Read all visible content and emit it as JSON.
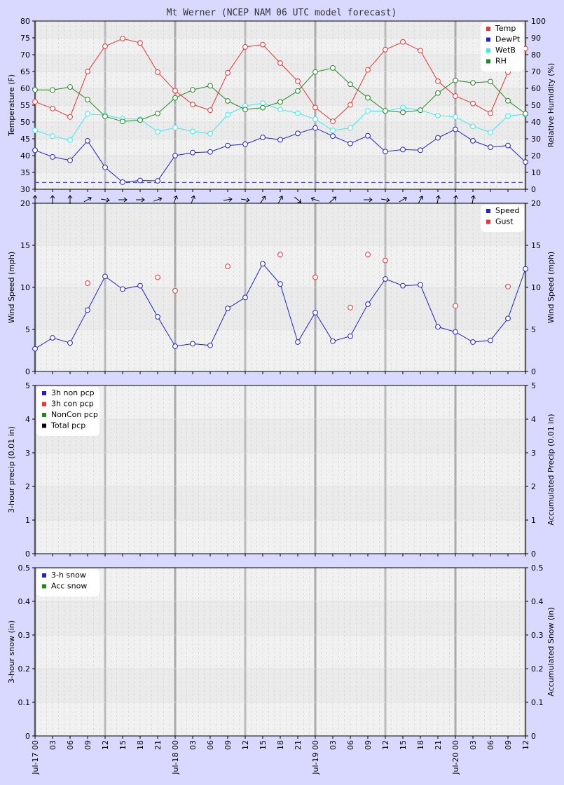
{
  "title": "Mt Werner (NCEP NAM 06 UTC model forecast)",
  "x_labels": [
    "Jul-17 00",
    "03",
    "06",
    "09",
    "12",
    "15",
    "18",
    "21",
    "Jul-18 00",
    "03",
    "06",
    "09",
    "12",
    "15",
    "18",
    "21",
    "Jul-19 00",
    "03",
    "06",
    "09",
    "12",
    "15",
    "18",
    "21",
    "Jul-20 00",
    "03",
    "06",
    "09",
    "12"
  ],
  "colors": {
    "temp": "#ee3333",
    "dewpt": "#2222cc",
    "wetb": "#33eeee",
    "rh": "#228822",
    "speed": "#2222cc",
    "gust": "#ee3333",
    "total": "#000000"
  },
  "chart_data": [
    {
      "type": "line",
      "ylabel": "Temperature (F)",
      "y2label": "Relative Humidity (%)",
      "ylim": [
        30,
        80
      ],
      "y2lim": [
        0,
        100
      ],
      "yticks": [
        "30",
        "35",
        "40",
        "45",
        "50",
        "55",
        "60",
        "65",
        "70",
        "75",
        "80"
      ],
      "y2ticks": [
        "0",
        "10",
        "20",
        "30",
        "40",
        "50",
        "60",
        "70",
        "80",
        "90",
        "100"
      ],
      "legend": "top-right",
      "series": [
        {
          "name": "Temp",
          "values": [
            56,
            54,
            51.5,
            65,
            72.5,
            74.8,
            73.5,
            64.8,
            59.3,
            55.2,
            53.5,
            64.6,
            72.3,
            73,
            67.5,
            62.1,
            54.3,
            50.2,
            55.1,
            65.5,
            71.5,
            73.8,
            71.2,
            62.1,
            57.7,
            55.5,
            52.6,
            64.8,
            71.8
          ]
        },
        {
          "name": "DewPt",
          "values": [
            41.6,
            39.6,
            38.6,
            44.4,
            36.5,
            32.1,
            32.6,
            32.5,
            40,
            40.9,
            41.1,
            43,
            43.4,
            45.4,
            44.7,
            46.6,
            48.2,
            45.8,
            43.6,
            45.9,
            41.2,
            41.8,
            41.6,
            45.3,
            47.8,
            44.4,
            42.5,
            43,
            38.1
          ]
        },
        {
          "name": "WetB",
          "values": [
            47.5,
            45.8,
            44.6,
            52.4,
            52,
            51,
            50.8,
            47.1,
            48.3,
            47.2,
            46.5,
            52.2,
            54.8,
            55.6,
            53.7,
            52.6,
            50.8,
            47.5,
            48.2,
            53.3,
            53.2,
            54.3,
            53.5,
            51.9,
            51.5,
            48.7,
            46.9,
            51.8,
            52.3
          ]
        },
        {
          "name": "RH",
          "values": [
            59.1,
            59,
            60.8,
            53.3,
            43.3,
            40.3,
            41.1,
            45,
            54.3,
            59.1,
            61.5,
            52.5,
            47.4,
            48.5,
            51.9,
            58.4,
            69.7,
            72.1,
            62.4,
            54.4,
            46.6,
            45.7,
            47,
            57.2,
            64.7,
            63.3,
            64,
            52.6,
            44.9
          ]
        }
      ]
    },
    {
      "type": "line",
      "ylabel": "Wind Speed (mph)",
      "y2label": "Wind Speed (mph)",
      "ylim": [
        0,
        20
      ],
      "yticks": [
        "0",
        "5",
        "10",
        "15",
        "20"
      ],
      "legend": "top-right",
      "series": [
        {
          "name": "Speed",
          "values": [
            2.7,
            4,
            3.4,
            7.3,
            11.3,
            9.8,
            10.2,
            6.5,
            3,
            3.3,
            3.1,
            7.5,
            8.8,
            12.8,
            10.4,
            3.5,
            7,
            3.6,
            4.2,
            8,
            11,
            10.2,
            10.3,
            5.3,
            4.7,
            3.5,
            3.7,
            6.3,
            12.2
          ]
        },
        {
          "name": "Gust",
          "values": [
            null,
            null,
            null,
            10.5,
            null,
            null,
            null,
            11.2,
            9.6,
            null,
            null,
            12.5,
            null,
            null,
            13.9,
            null,
            11.2,
            null,
            7.6,
            13.9,
            13.2,
            null,
            null,
            null,
            7.8,
            null,
            null,
            10.1,
            null
          ]
        }
      ],
      "wind_dir_deg": [
        0,
        0,
        0,
        60,
        100,
        90,
        90,
        70,
        20,
        20,
        null,
        80,
        100,
        35,
        30,
        130,
        290,
        50,
        null,
        90,
        100,
        60,
        30,
        10,
        10,
        10,
        null,
        null,
        null
      ]
    },
    {
      "type": "line",
      "ylabel": "3-hour precip (0.01 in)",
      "y2label": "Accumulated Precip (0.01 in)",
      "ylim": [
        0,
        5
      ],
      "yticks": [
        "0",
        "1",
        "2",
        "3",
        "4",
        "5"
      ],
      "legend": "top-left",
      "series": [
        {
          "name": "3h non pcp",
          "values": []
        },
        {
          "name": "3h con pcp",
          "values": []
        },
        {
          "name": "NonCon pcp",
          "values": []
        },
        {
          "name": "Total pcp",
          "values": []
        }
      ]
    },
    {
      "type": "line",
      "ylabel": "3-hour snow (in)",
      "y2label": "Accumulated Snow (in)",
      "ylim": [
        0,
        0.5
      ],
      "yticks": [
        "0",
        "0.1",
        "0.2",
        "0.3",
        "0.4",
        "0.5"
      ],
      "legend": "top-left",
      "series": [
        {
          "name": "3-h snow",
          "values": []
        },
        {
          "name": "Acc snow",
          "values": []
        }
      ]
    }
  ],
  "panel1_dashed_line": 32
}
